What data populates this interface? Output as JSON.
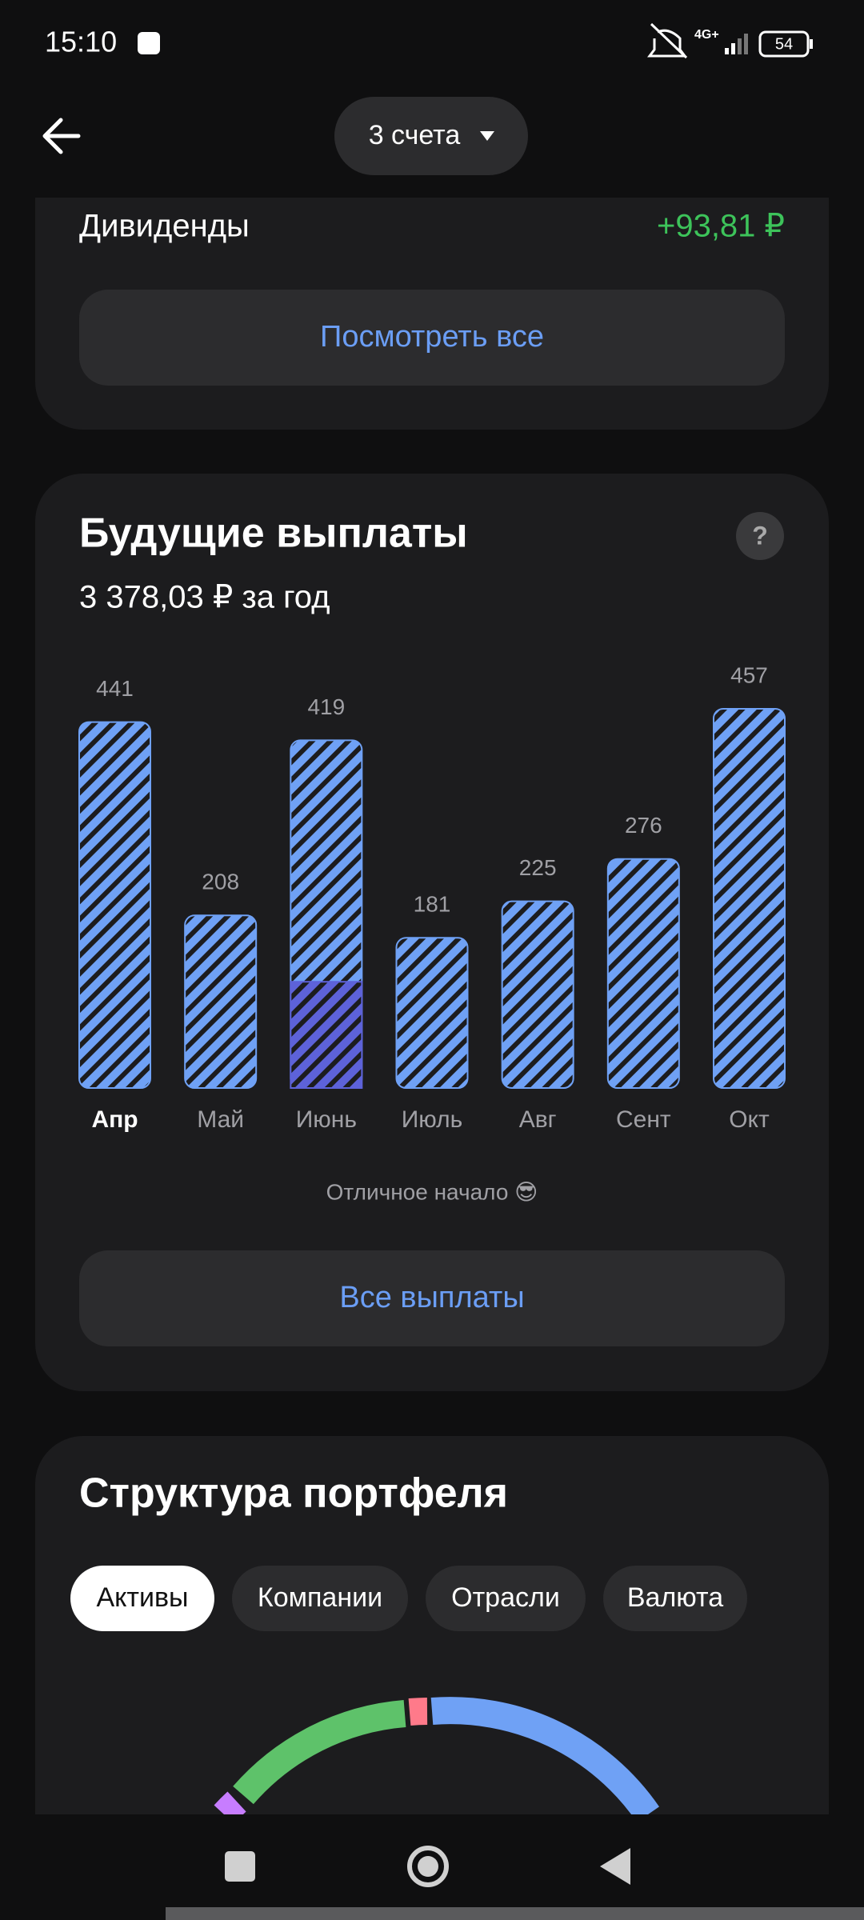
{
  "status_bar": {
    "time": "15:10",
    "network": "4G+",
    "battery": "54"
  },
  "header": {
    "account_selector": "3 счета"
  },
  "dividends": {
    "label": "Дивиденды",
    "value": "+93,81 ₽",
    "button": "Посмотреть все"
  },
  "future_payouts": {
    "title": "Будущие выплаты",
    "total": "3 378,03 ₽ за год",
    "chart_data": {
      "type": "bar",
      "categories": [
        "Апр",
        "Май",
        "Июнь",
        "Июль",
        "Авг",
        "Сент",
        "Окт"
      ],
      "values": [
        441,
        208,
        419,
        181,
        225,
        276,
        457
      ],
      "received_values": [
        null,
        null,
        128,
        null,
        null,
        null,
        null
      ],
      "color": "#6fa1f5",
      "received_color": "#5d62d9",
      "selected_index": 0
    },
    "note": "Отличное начало 😎",
    "button": "Все выплаты"
  },
  "portfolio_structure": {
    "title": "Структура портфеля",
    "tabs": [
      "Активы",
      "Компании",
      "Отрасли",
      "Валюта"
    ],
    "selected_tab": 0
  }
}
